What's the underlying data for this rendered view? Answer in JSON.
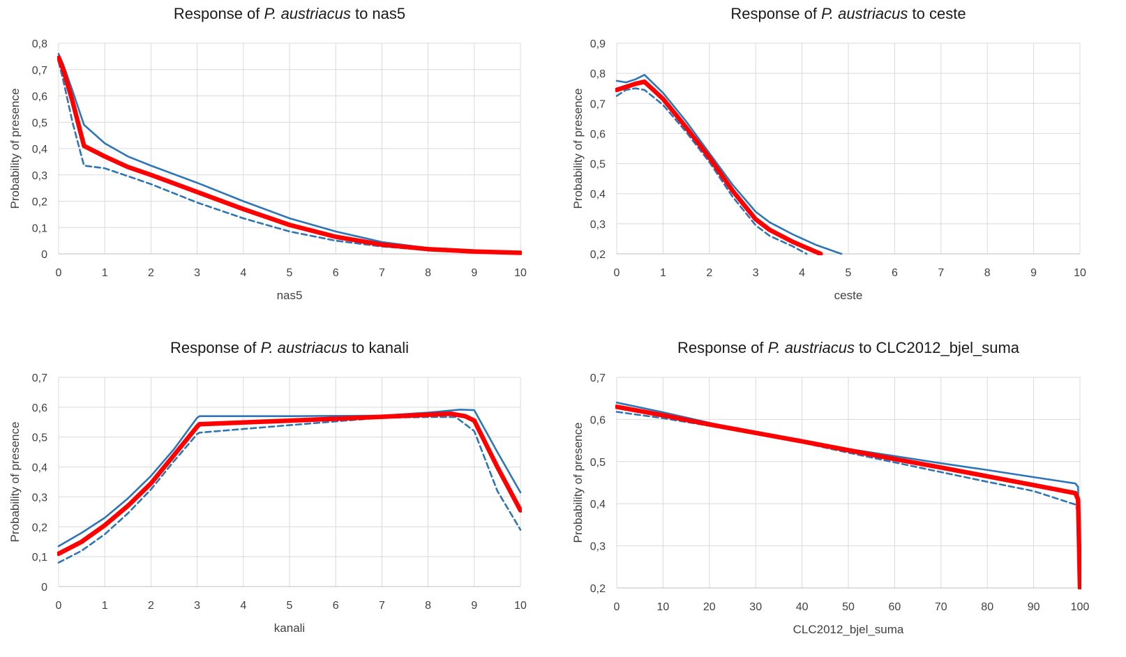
{
  "chart_data": [
    {
      "type": "line",
      "title_prefix": "Response of ",
      "title_species": "P. austriacus",
      "title_suffix": " to nas5",
      "xlabel": "nas5",
      "ylabel": "Probability of presence",
      "xlim": [
        0,
        10
      ],
      "ylim": [
        0,
        0.8
      ],
      "xticks": [
        "0",
        "1",
        "2",
        "3",
        "4",
        "5",
        "6",
        "7",
        "8",
        "9",
        "10"
      ],
      "yticks": [
        "0",
        "0,1",
        "0,2",
        "0,3",
        "0,4",
        "0,5",
        "0,6",
        "0,7",
        "0,8"
      ],
      "grid": "on",
      "legend": "none",
      "colors": {
        "mean": "#ff0000",
        "bound": "#2e75b6"
      },
      "series": [
        {
          "style": "upper-solid",
          "x": [
            0,
            0.1,
            0.3,
            0.55,
            1,
            1.5,
            2,
            3,
            4,
            5,
            6,
            7,
            8,
            9,
            10
          ],
          "y": [
            0.76,
            0.72,
            0.62,
            0.49,
            0.42,
            0.37,
            0.335,
            0.27,
            0.2,
            0.135,
            0.085,
            0.045,
            0.022,
            0.012,
            0.006
          ]
        },
        {
          "style": "mean-thick",
          "x": [
            0,
            0.1,
            0.3,
            0.55,
            1,
            1.5,
            2,
            3,
            4,
            5,
            6,
            7,
            8,
            9,
            10
          ],
          "y": [
            0.745,
            0.7,
            0.58,
            0.41,
            0.37,
            0.33,
            0.3,
            0.235,
            0.17,
            0.11,
            0.065,
            0.035,
            0.018,
            0.009,
            0.004
          ]
        },
        {
          "style": "lower-dashed",
          "x": [
            0,
            0.1,
            0.3,
            0.55,
            1,
            1.5,
            2,
            3,
            4,
            5,
            6,
            7,
            8,
            9,
            10
          ],
          "y": [
            0.73,
            0.66,
            0.5,
            0.335,
            0.325,
            0.295,
            0.265,
            0.195,
            0.135,
            0.085,
            0.05,
            0.028,
            0.014,
            0.007,
            0.003
          ]
        }
      ]
    },
    {
      "type": "line",
      "title_prefix": "Response of ",
      "title_species": "P. austriacus",
      "title_suffix": " to ceste",
      "xlabel": "ceste",
      "ylabel": "Probability of presence",
      "xlim": [
        0,
        10
      ],
      "ylim": [
        0.2,
        0.9
      ],
      "xticks": [
        "0",
        "1",
        "2",
        "3",
        "4",
        "5",
        "6",
        "7",
        "8",
        "9",
        "10"
      ],
      "yticks": [
        "0,2",
        "0,3",
        "0,4",
        "0,5",
        "0,6",
        "0,7",
        "0,8",
        "0,9"
      ],
      "grid": "on",
      "legend": "none",
      "colors": {
        "mean": "#ff0000",
        "bound": "#2e75b6"
      },
      "series": [
        {
          "style": "upper-solid",
          "x": [
            0,
            0.2,
            0.4,
            0.6,
            1,
            1.5,
            2,
            2.5,
            3,
            3.3,
            3.8,
            4.3,
            4.85
          ],
          "y": [
            0.775,
            0.77,
            0.78,
            0.795,
            0.735,
            0.64,
            0.535,
            0.43,
            0.34,
            0.305,
            0.265,
            0.23,
            0.2
          ]
        },
        {
          "style": "mean-thick",
          "x": [
            0,
            0.2,
            0.4,
            0.6,
            1,
            1.5,
            2,
            2.5,
            3,
            3.3,
            3.8,
            4.4
          ],
          "y": [
            0.745,
            0.755,
            0.765,
            0.772,
            0.715,
            0.62,
            0.52,
            0.41,
            0.315,
            0.28,
            0.24,
            0.2
          ]
        },
        {
          "style": "lower-dashed",
          "x": [
            0,
            0.2,
            0.4,
            0.6,
            1,
            1.5,
            2,
            2.5,
            3,
            3.3,
            3.8,
            4.1
          ],
          "y": [
            0.725,
            0.745,
            0.75,
            0.745,
            0.695,
            0.605,
            0.505,
            0.39,
            0.295,
            0.26,
            0.225,
            0.2
          ]
        }
      ]
    },
    {
      "type": "line",
      "title_prefix": "Response of ",
      "title_species": "P. austriacus",
      "title_suffix": " to kanali",
      "xlabel": "kanali",
      "ylabel": "Probability of presence",
      "xlim": [
        0,
        10
      ],
      "ylim": [
        0,
        0.7
      ],
      "xticks": [
        "0",
        "1",
        "2",
        "3",
        "4",
        "5",
        "6",
        "7",
        "8",
        "9",
        "10"
      ],
      "yticks": [
        "0",
        "0,1",
        "0,2",
        "0,3",
        "0,4",
        "0,5",
        "0,6",
        "0,7"
      ],
      "grid": "on",
      "legend": "none",
      "colors": {
        "mean": "#ff0000",
        "bound": "#2e75b6"
      },
      "series": [
        {
          "style": "upper-solid",
          "x": [
            0,
            0.5,
            1,
            1.5,
            2,
            2.5,
            3,
            3.05,
            5,
            7,
            8,
            8.7,
            9,
            9.5,
            10
          ],
          "y": [
            0.135,
            0.18,
            0.23,
            0.295,
            0.37,
            0.46,
            0.565,
            0.57,
            0.57,
            0.572,
            0.582,
            0.592,
            0.59,
            0.45,
            0.315
          ]
        },
        {
          "style": "mean-thick",
          "x": [
            0,
            0.5,
            1,
            1.5,
            2,
            2.5,
            3,
            3.05,
            5,
            7,
            8,
            8.5,
            8.8,
            9,
            9.5,
            10
          ],
          "y": [
            0.11,
            0.15,
            0.205,
            0.27,
            0.345,
            0.44,
            0.535,
            0.543,
            0.555,
            0.568,
            0.575,
            0.578,
            0.57,
            0.555,
            0.4,
            0.255
          ]
        },
        {
          "style": "lower-dashed",
          "x": [
            0,
            0.5,
            1,
            1.5,
            2,
            2.5,
            3,
            3.05,
            5,
            7,
            8,
            8.6,
            9,
            9.5,
            10
          ],
          "y": [
            0.08,
            0.12,
            0.175,
            0.245,
            0.325,
            0.42,
            0.51,
            0.515,
            0.54,
            0.565,
            0.567,
            0.567,
            0.52,
            0.32,
            0.19
          ]
        }
      ]
    },
    {
      "type": "line",
      "title_prefix": "Response of ",
      "title_species": "P. austriacus",
      "title_suffix": " to CLC2012_bjel_suma",
      "xlabel": "CLC2012_bjel_suma",
      "ylabel": "Probability of presence",
      "xlim": [
        0,
        100
      ],
      "ylim": [
        0.2,
        0.7
      ],
      "xticks": [
        "0",
        "10",
        "20",
        "30",
        "40",
        "50",
        "60",
        "70",
        "80",
        "90",
        "100"
      ],
      "yticks": [
        "0,2",
        "0,3",
        "0,4",
        "0,5",
        "0,6",
        "0,7"
      ],
      "grid": "on",
      "legend": "none",
      "colors": {
        "mean": "#ff0000",
        "bound": "#2e75b6"
      },
      "series": [
        {
          "style": "upper-solid",
          "x": [
            0,
            10,
            20,
            30,
            40,
            50,
            60,
            70,
            80,
            90,
            99,
            99.6,
            100
          ],
          "y": [
            0.64,
            0.617,
            0.592,
            0.568,
            0.548,
            0.53,
            0.513,
            0.496,
            0.48,
            0.463,
            0.448,
            0.44,
            0.2
          ]
        },
        {
          "style": "mean-thick",
          "x": [
            0,
            10,
            20,
            30,
            40,
            50,
            60,
            70,
            80,
            90,
            99,
            99.6,
            100
          ],
          "y": [
            0.63,
            0.61,
            0.588,
            0.568,
            0.548,
            0.527,
            0.506,
            0.486,
            0.465,
            0.444,
            0.425,
            0.41,
            0.2
          ]
        },
        {
          "style": "lower-dashed",
          "x": [
            0,
            10,
            20,
            30,
            40,
            50,
            60,
            70,
            80,
            90,
            99,
            99.6,
            100
          ],
          "y": [
            0.618,
            0.603,
            0.585,
            0.567,
            0.545,
            0.521,
            0.498,
            0.475,
            0.452,
            0.43,
            0.398,
            0.38,
            0.2
          ]
        }
      ]
    }
  ]
}
